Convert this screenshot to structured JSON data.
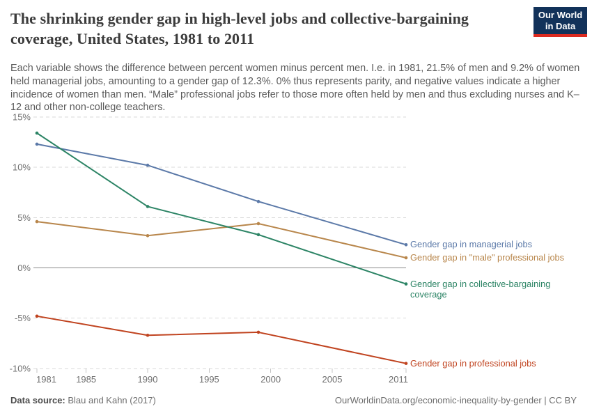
{
  "header": {
    "title": "The shrinking gender gap in high-level jobs and collective-bargaining coverage, United States, 1981 to 2011",
    "subtitle": "Each variable shows the difference between percent women minus percent men. I.e. in 1981, 21.5% of men and 9.2% of women held managerial jobs, amounting to a gender gap of 12.3%. 0% thus represents parity, and negative values indicate a higher incidence of women than men. “Male” professional jobs refer to those more often held by men and thus excluding nurses and K–12 and other non-college teachers.",
    "logo": {
      "line1": "Our World",
      "line2": "in Data",
      "bg_color": "#12325a",
      "accent_color": "#dc2a20"
    }
  },
  "chart_data": {
    "type": "line",
    "title": "The shrinking gender gap in high-level jobs and collective-bargaining coverage, United States, 1981 to 2011",
    "x": [
      1981,
      1990,
      1999,
      2011
    ],
    "series": [
      {
        "name": "Gender gap in managerial jobs",
        "slug": "managerial-jobs",
        "color": "#5b79a8",
        "values": [
          12.3,
          10.2,
          6.6,
          2.3
        ],
        "label_lines": [
          "Gender gap in managerial jobs"
        ]
      },
      {
        "name": "Gender gap in \"male\" professional jobs",
        "slug": "male-professional-jobs",
        "color": "#b8864b",
        "values": [
          4.6,
          3.2,
          4.4,
          1.0
        ],
        "label_lines": [
          "Gender gap in \"male\" professional jobs"
        ]
      },
      {
        "name": "Gender gap in collective-bargaining coverage",
        "slug": "collective-bargaining-coverage",
        "color": "#2c8465",
        "values": [
          13.4,
          6.1,
          3.3,
          -1.6
        ],
        "label_lines": [
          "Gender gap in collective-bargaining",
          "coverage"
        ]
      },
      {
        "name": "Gender gap in professional jobs",
        "slug": "professional-jobs",
        "color": "#c0431f",
        "values": [
          -4.8,
          -6.7,
          -6.4,
          -9.5
        ],
        "label_lines": [
          "Gender gap in professional jobs"
        ]
      }
    ],
    "xlim": [
      1981,
      2011
    ],
    "ylim": [
      -10,
      15
    ],
    "xticks": [
      1981,
      1985,
      1990,
      1995,
      2000,
      2005,
      2011
    ],
    "yticks": [
      15,
      10,
      5,
      0,
      -5,
      -10
    ],
    "ytick_suffix": "%",
    "grid": "horizontal dashed gridlines, solid line at 0",
    "legend_position": "right of line ends",
    "colors": {
      "gridline": "#d9d9d9",
      "zero_line": "#8a8a8a",
      "axis_text": "#6e6e6e",
      "tick_mark": "#c4c4c4"
    }
  },
  "footer": {
    "datasource_label": "Data source:",
    "datasource_value": " Blau and Kahn (2017)",
    "credit": "OurWorldinData.org/economic-inequality-by-gender | CC BY"
  }
}
